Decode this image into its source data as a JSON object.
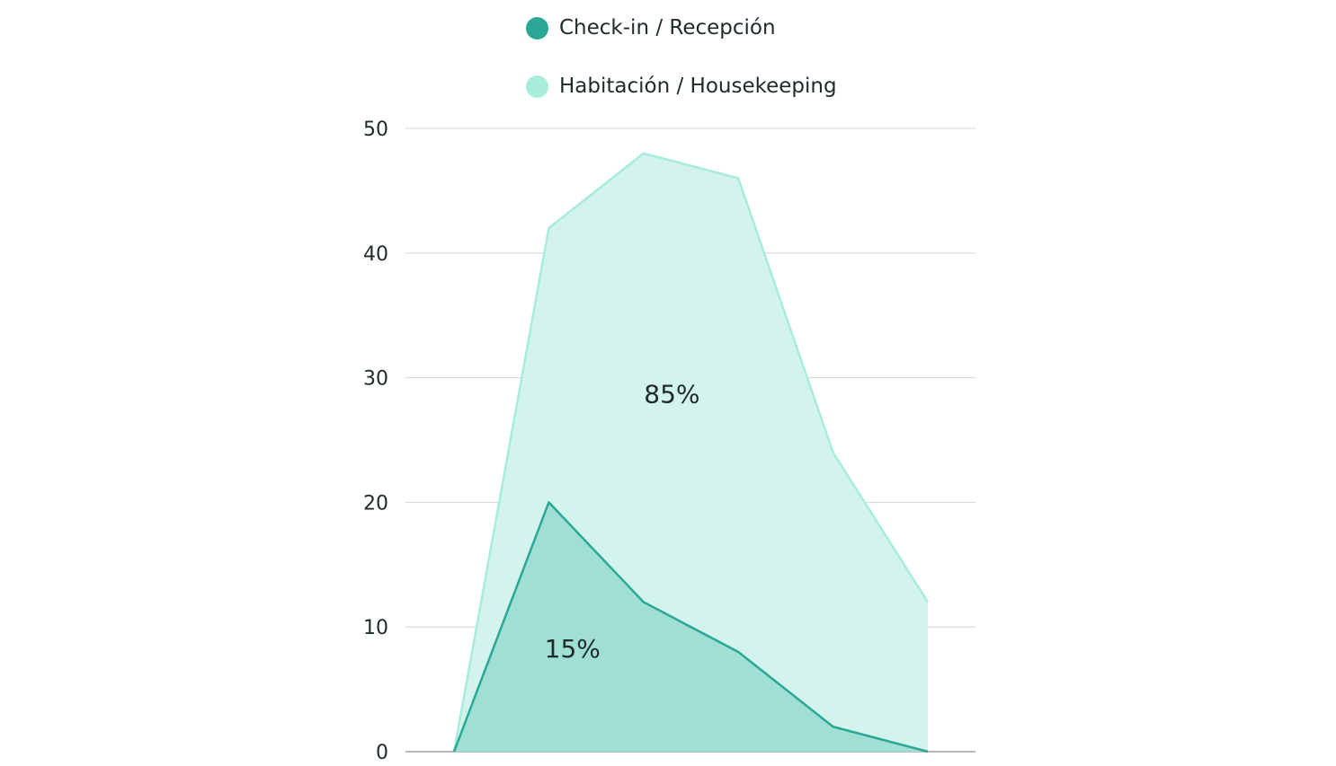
{
  "chart_data": {
    "type": "area",
    "stacked": false,
    "x": [
      0,
      1,
      2,
      3,
      4,
      5
    ],
    "series": [
      {
        "name": "Habitación / Housekeeping",
        "values": [
          0,
          42,
          48,
          46,
          24,
          12
        ],
        "color": "#a8ecdc",
        "fill": "#d2f4ec"
      },
      {
        "name": "Check-in / Recepción",
        "values": [
          0,
          20,
          12,
          8,
          2,
          0
        ],
        "color": "#2aa895",
        "fill": "#a0dfd3"
      }
    ],
    "annotations": [
      {
        "text": "85%",
        "series": "Habitación / Housekeeping",
        "x": 2.3,
        "y": 28.7
      },
      {
        "text": "15%",
        "series": "Check-in / Recepción",
        "x": 1.25,
        "y": 8.3
      }
    ],
    "ylim": [
      0,
      50
    ],
    "yticks": [
      0,
      10,
      20,
      30,
      40,
      50
    ],
    "grid": true,
    "legend": "top",
    "title": "",
    "xlabel": "",
    "ylabel": ""
  }
}
